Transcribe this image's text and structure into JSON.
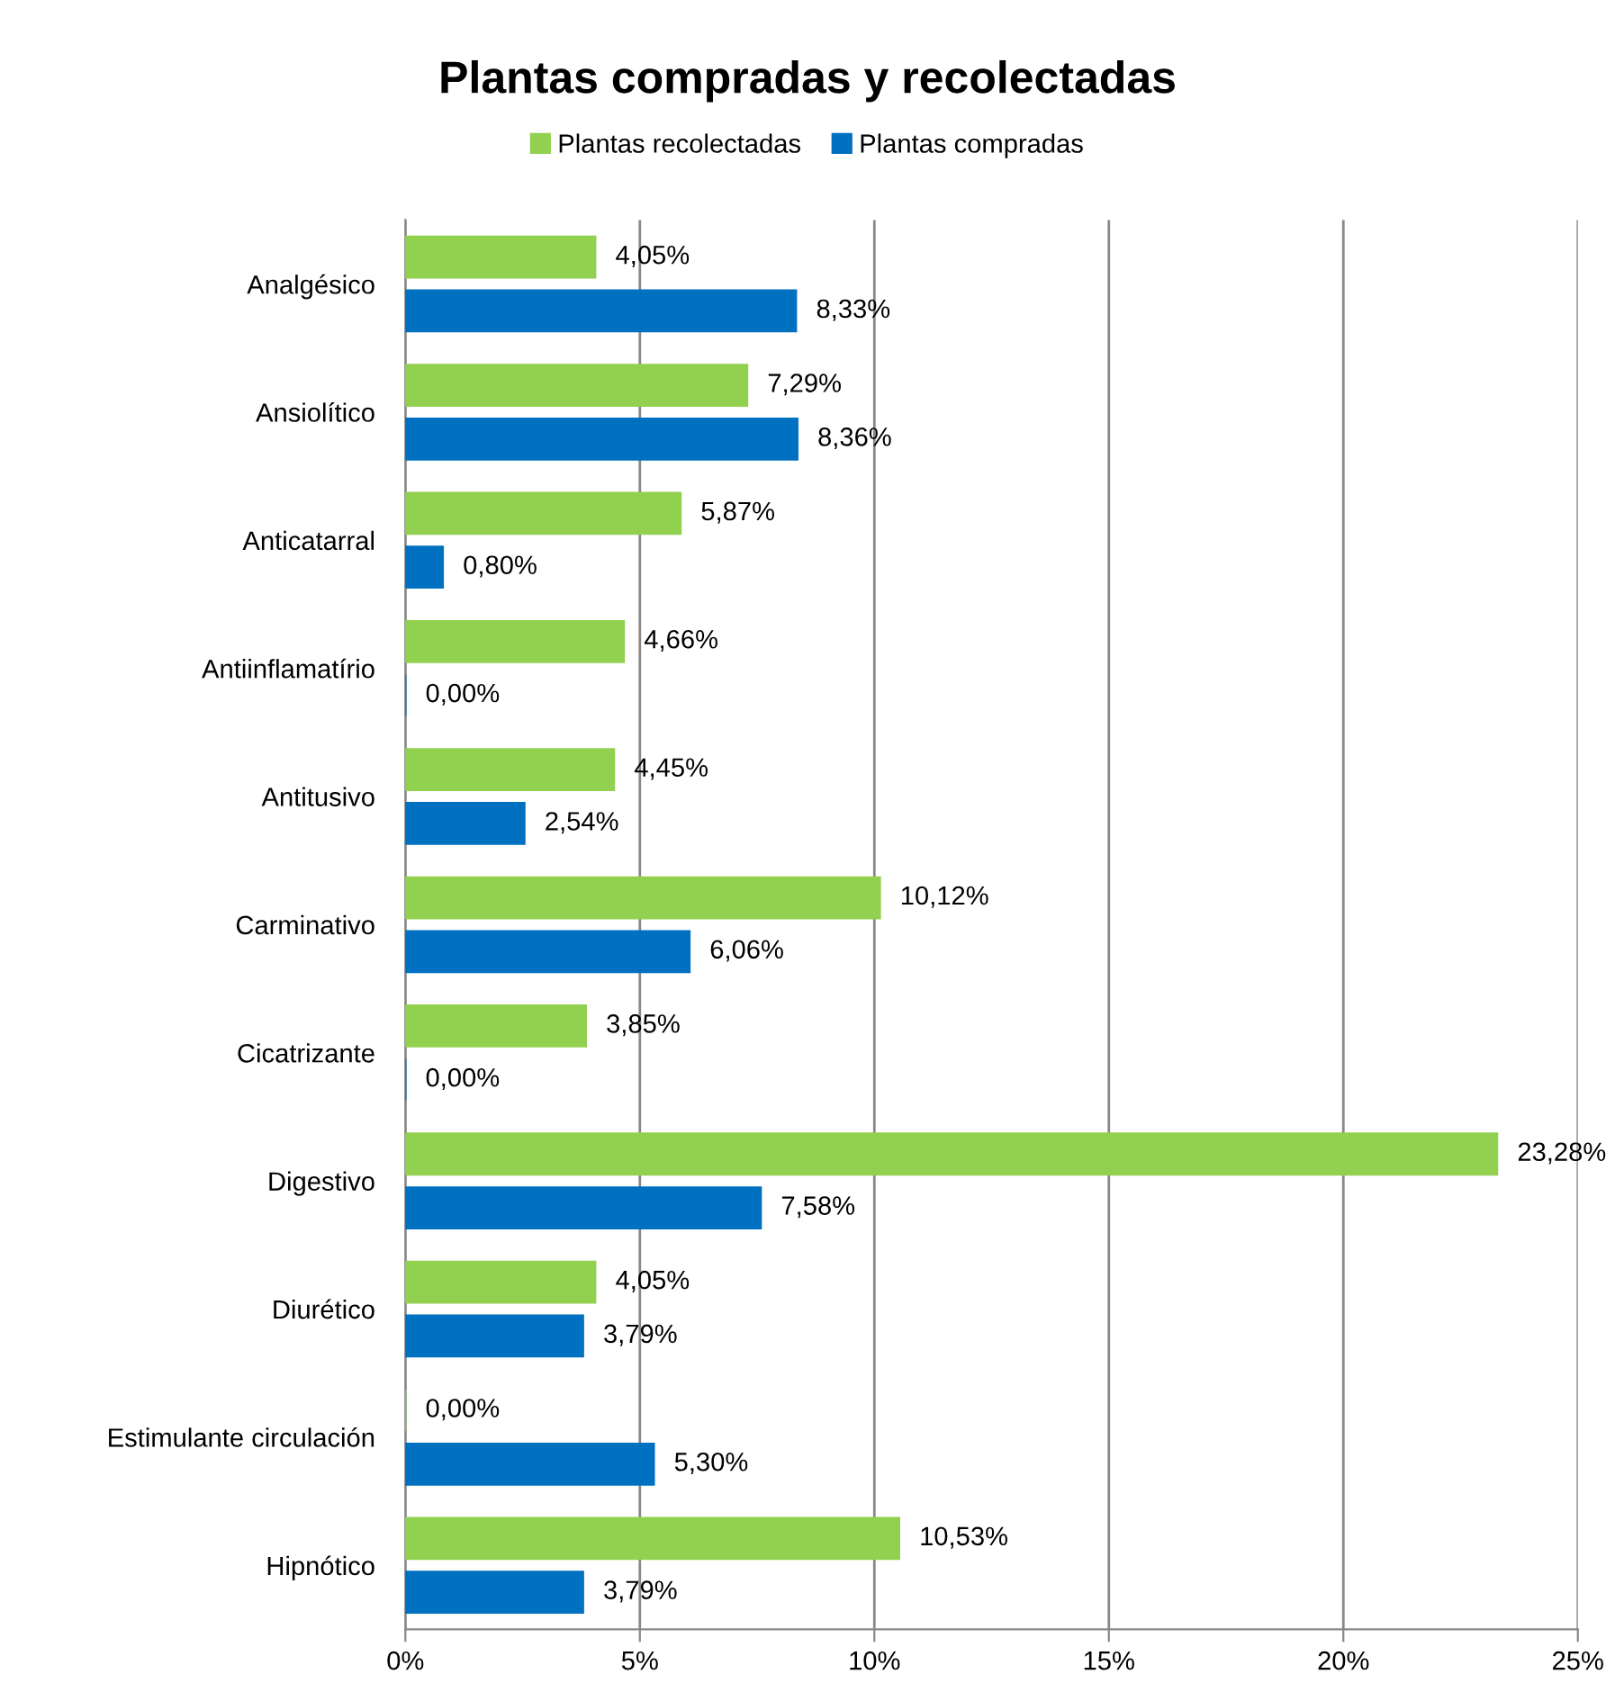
{
  "chart_data": {
    "type": "bar",
    "orientation": "horizontal",
    "title": "Plantas compradas y recolectadas",
    "categories": [
      "Analgésico",
      "Ansiolítico",
      "Anticatarral",
      "Antiinflamatírio",
      "Antitusivo",
      "Carminativo",
      "Cicatrizante",
      "Digestivo",
      "Diurético",
      "Estimulante circulación",
      "Hipnótico"
    ],
    "series": [
      {
        "name": "Plantas recolectadas",
        "color": "#92d050",
        "values": [
          4.05,
          7.29,
          5.87,
          4.66,
          4.45,
          10.12,
          3.85,
          23.28,
          4.05,
          0.0,
          10.53
        ],
        "value_labels": [
          "4,05%",
          "7,29%",
          "5,87%",
          "4,66%",
          "4,45%",
          "10,12%",
          "3,85%",
          "23,28%",
          "4,05%",
          "0,00%",
          "10,53%"
        ]
      },
      {
        "name": "Plantas compradas",
        "color": "#0070c0",
        "values": [
          8.33,
          8.36,
          0.8,
          0.0,
          2.54,
          6.06,
          0.0,
          7.58,
          3.79,
          5.3,
          3.79
        ],
        "value_labels": [
          "8,33%",
          "8,36%",
          "0,80%",
          "0,00%",
          "2,54%",
          "6,06%",
          "0,00%",
          "7,58%",
          "3,79%",
          "5,30%",
          "3,79%"
        ]
      }
    ],
    "xlim": [
      0,
      25
    ],
    "xticks": [
      {
        "value": 0,
        "label": "0%"
      },
      {
        "value": 5,
        "label": "5%"
      },
      {
        "value": 10,
        "label": "10%"
      },
      {
        "value": 15,
        "label": "15%"
      },
      {
        "value": 20,
        "label": "20%"
      },
      {
        "value": 25,
        "label": "25%"
      }
    ],
    "grid": "x",
    "legend": "top"
  }
}
